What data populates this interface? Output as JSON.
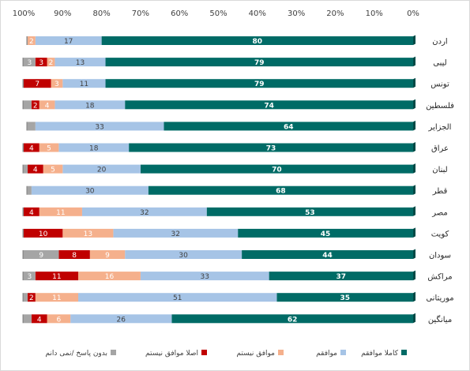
{
  "chart_data": {
    "type": "bar",
    "orientation": "horizontal",
    "stacked": "100%",
    "x_direction": "right-to-left",
    "xlim": [
      0,
      100
    ],
    "x_ticks": [
      "0%",
      "10%",
      "20%",
      "30%",
      "40%",
      "50%",
      "60%",
      "70%",
      "80%",
      "90%",
      "100%"
    ],
    "categories": [
      "اردن",
      "لیبی",
      "تونس",
      "فلسطین",
      "الجزایر",
      "عراق",
      "لبنان",
      "قطر",
      "مصر",
      "کویت",
      "سودان",
      "مراکش",
      "موریتانی",
      "میانگین"
    ],
    "series": [
      {
        "name": "کاملا موافقم",
        "color": "#006B66",
        "label_color": "#ffffff",
        "values": [
          80,
          79,
          79,
          74,
          64,
          73,
          70,
          68,
          53,
          45,
          44,
          37,
          35,
          62
        ]
      },
      {
        "name": "موافقم",
        "color": "#A6C4E6",
        "label_color": "#404040",
        "values": [
          17,
          13,
          11,
          18,
          33,
          18,
          20,
          30,
          32,
          32,
          30,
          33,
          51,
          26
        ]
      },
      {
        "name": "موافق نیستم",
        "color": "#F5B08C",
        "label_color": "#ffffff",
        "values": [
          2,
          2,
          3,
          4,
          0,
          5,
          5,
          0,
          11,
          13,
          9,
          16,
          11,
          6
        ]
      },
      {
        "name": "اصلا موافق نیستم",
        "color": "#C00000",
        "label_color": "#ffffff",
        "values": [
          0,
          3,
          7,
          2,
          0,
          4,
          4,
          0,
          4,
          10,
          8,
          11,
          2,
          4
        ]
      },
      {
        "name": "بدون پاسخ /نمی دانم",
        "color": "#A5A5A5",
        "label_color": "#ffffff",
        "values": [
          0,
          3,
          0,
          2,
          2,
          0,
          1,
          1,
          0,
          0,
          9,
          3,
          1,
          2
        ]
      }
    ],
    "legend_position": "bottom",
    "grid": false
  }
}
